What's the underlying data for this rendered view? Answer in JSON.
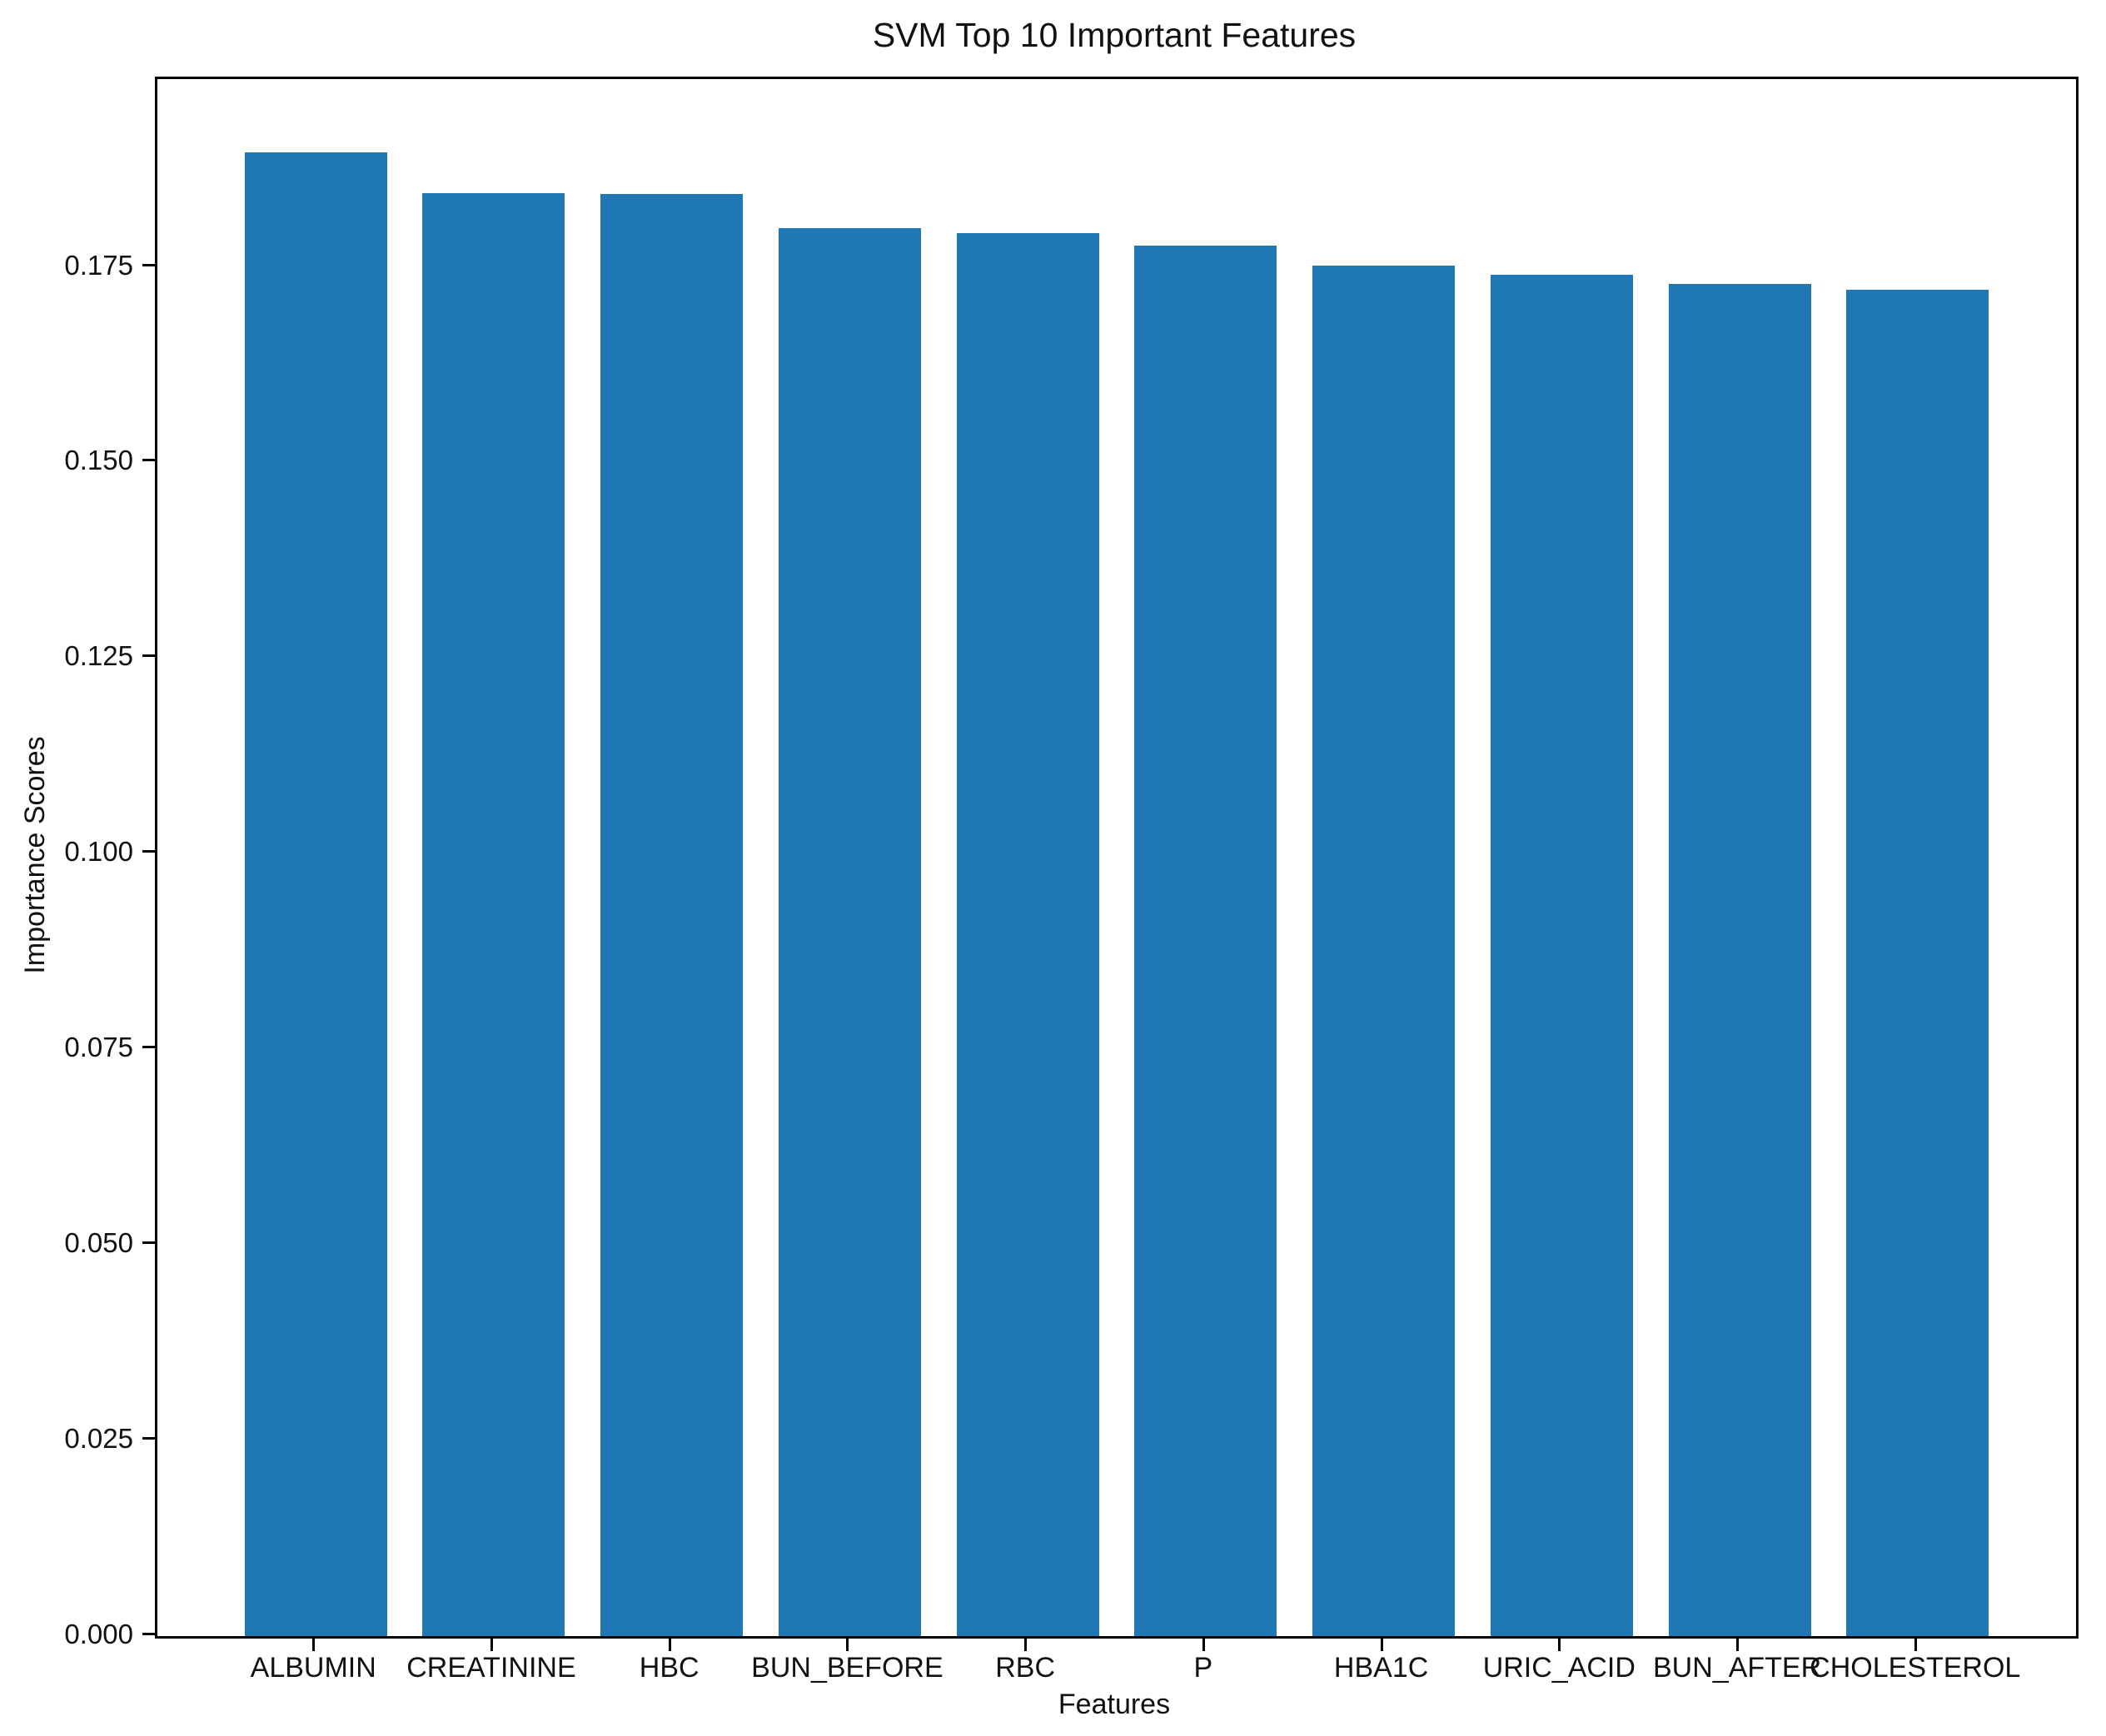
{
  "chart_data": {
    "type": "bar",
    "title": "SVM Top 10 Important Features",
    "xlabel": "Features",
    "ylabel": "Importance Scores",
    "categories": [
      "ALBUMIN",
      "CREATININE",
      "HBC",
      "BUN_BEFORE",
      "RBC",
      "P",
      "HBA1C",
      "URIC_ACID",
      "BUN_AFTER",
      "CHOLESTEROL"
    ],
    "values": [
      0.1896,
      0.1844,
      0.1843,
      0.18,
      0.1793,
      0.1777,
      0.1752,
      0.174,
      0.1728,
      0.1721
    ],
    "ylim": [
      0,
      0.199
    ],
    "yticks": [
      0,
      0.025,
      0.05,
      0.075,
      0.1,
      0.125,
      0.15,
      0.175
    ],
    "ytick_labels": [
      "0.000",
      "0.025",
      "0.050",
      "0.075",
      "0.100",
      "0.125",
      "0.150",
      "0.175"
    ],
    "grid": false,
    "legend_position": "none",
    "bar_color": "#1f77b4",
    "axis_color": "#000000",
    "text_color": "#111111"
  }
}
